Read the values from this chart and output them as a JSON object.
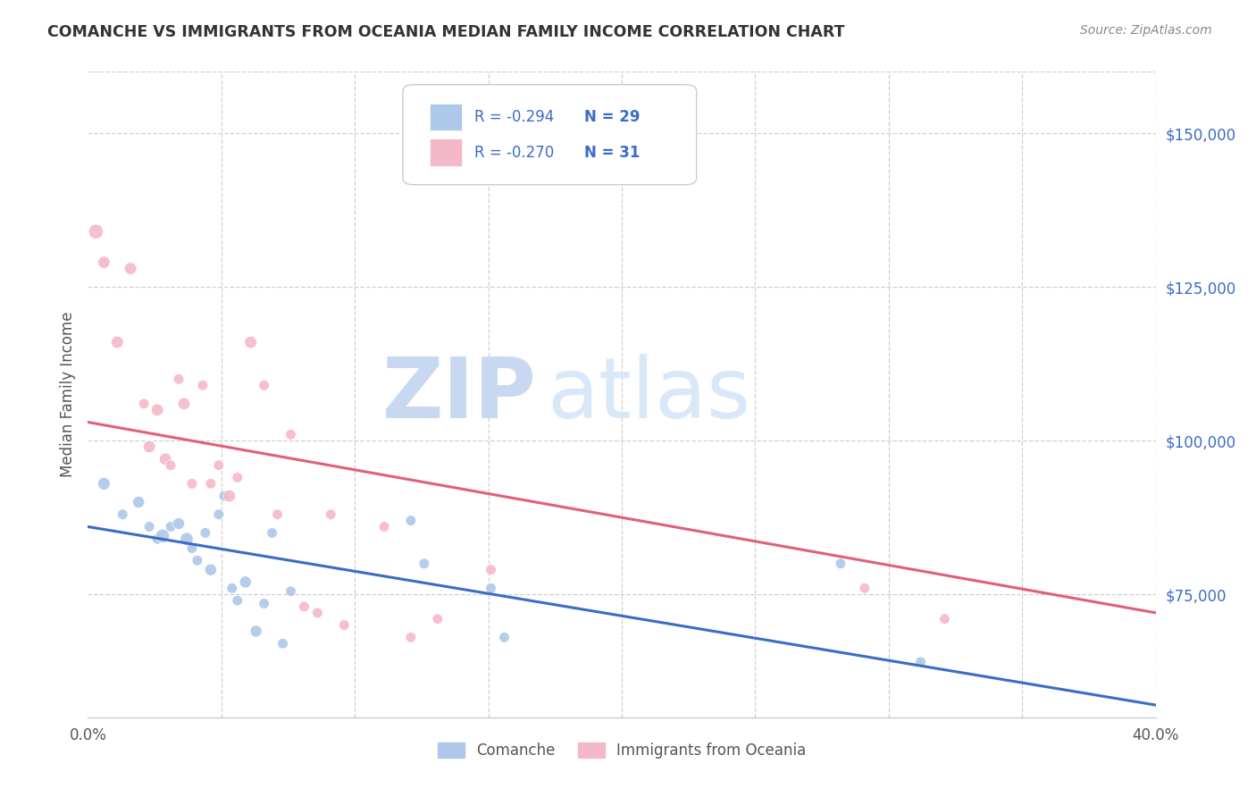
{
  "title": "COMANCHE VS IMMIGRANTS FROM OCEANIA MEDIAN FAMILY INCOME CORRELATION CHART",
  "source": "Source: ZipAtlas.com",
  "ylabel": "Median Family Income",
  "yticks": [
    75000,
    100000,
    125000,
    150000
  ],
  "ytick_labels": [
    "$75,000",
    "$100,000",
    "$125,000",
    "$150,000"
  ],
  "xlim": [
    0.0,
    0.4
  ],
  "ylim": [
    55000,
    160000
  ],
  "legend_r_blue": "-0.294",
  "legend_n_blue": "29",
  "legend_r_pink": "-0.270",
  "legend_n_pink": "31",
  "blue_color": "#adc8e8",
  "pink_color": "#f5b8c8",
  "blue_line_color": "#3b6cc7",
  "pink_line_color": "#e0607a",
  "watermark_zip": "ZIP",
  "watermark_atlas": "atlas",
  "legend_label_blue": "Comanche",
  "legend_label_pink": "Immigrants from Oceania",
  "blue_scatter_x": [
    0.006,
    0.013,
    0.019,
    0.023,
    0.026,
    0.028,
    0.031,
    0.034,
    0.037,
    0.039,
    0.041,
    0.044,
    0.046,
    0.049,
    0.051,
    0.054,
    0.056,
    0.059,
    0.063,
    0.066,
    0.069,
    0.073,
    0.076,
    0.121,
    0.126,
    0.151,
    0.156,
    0.282,
    0.312
  ],
  "blue_scatter_y": [
    93000,
    88000,
    90000,
    86000,
    84000,
    84500,
    86000,
    86500,
    84000,
    82500,
    80500,
    85000,
    79000,
    88000,
    91000,
    76000,
    74000,
    77000,
    69000,
    73500,
    85000,
    67000,
    75500,
    87000,
    80000,
    76000,
    68000,
    80000,
    64000
  ],
  "blue_scatter_size": [
    100,
    70,
    90,
    70,
    70,
    120,
    70,
    90,
    110,
    70,
    70,
    70,
    90,
    70,
    70,
    70,
    70,
    90,
    90,
    70,
    70,
    70,
    70,
    70,
    70,
    70,
    70,
    70,
    70
  ],
  "pink_scatter_x": [
    0.003,
    0.006,
    0.011,
    0.016,
    0.021,
    0.023,
    0.026,
    0.029,
    0.031,
    0.034,
    0.036,
    0.039,
    0.043,
    0.046,
    0.049,
    0.053,
    0.056,
    0.061,
    0.066,
    0.071,
    0.076,
    0.081,
    0.086,
    0.091,
    0.096,
    0.111,
    0.121,
    0.131,
    0.151,
    0.291,
    0.321
  ],
  "pink_scatter_y": [
    134000,
    129000,
    116000,
    128000,
    106000,
    99000,
    105000,
    97000,
    96000,
    110000,
    106000,
    93000,
    109000,
    93000,
    96000,
    91000,
    94000,
    116000,
    109000,
    88000,
    101000,
    73000,
    72000,
    88000,
    70000,
    86000,
    68000,
    71000,
    79000,
    76000,
    71000
  ],
  "pink_scatter_size": [
    140,
    95,
    95,
    95,
    70,
    95,
    95,
    95,
    70,
    70,
    95,
    70,
    70,
    70,
    70,
    95,
    70,
    95,
    70,
    70,
    70,
    70,
    70,
    70,
    70,
    70,
    70,
    70,
    70,
    70,
    70
  ],
  "blue_line_x": [
    0.0,
    0.4
  ],
  "blue_line_y": [
    86000,
    57000
  ],
  "pink_line_x": [
    0.0,
    0.4
  ],
  "pink_line_y": [
    103000,
    72000
  ],
  "grid_color": "#d0d0d0",
  "spine_color": "#cccccc"
}
